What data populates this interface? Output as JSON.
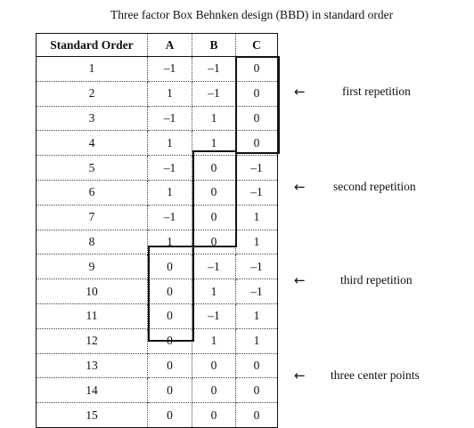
{
  "title": "Three factor Box Behnken design (BBD) in standard order",
  "table": {
    "headers": [
      "Standard Order",
      "A",
      "B",
      "C"
    ],
    "rows": [
      [
        "1",
        "–1",
        "–1",
        "0"
      ],
      [
        "2",
        "1",
        "–1",
        "0"
      ],
      [
        "3",
        "–1",
        "1",
        "0"
      ],
      [
        "4",
        "1",
        "1",
        "0"
      ],
      [
        "5",
        "–1",
        "0",
        "–1"
      ],
      [
        "6",
        "1",
        "0",
        "–1"
      ],
      [
        "7",
        "–1",
        "0",
        "1"
      ],
      [
        "8",
        "1",
        "0",
        "1"
      ],
      [
        "9",
        "0",
        "–1",
        "–1"
      ],
      [
        "10",
        "0",
        "1",
        "–1"
      ],
      [
        "11",
        "0",
        "–1",
        "1"
      ],
      [
        "12",
        "0",
        "1",
        "1"
      ],
      [
        "13",
        "0",
        "0",
        "0"
      ],
      [
        "14",
        "0",
        "0",
        "0"
      ],
      [
        "15",
        "0",
        "0",
        "0"
      ]
    ]
  },
  "annotations": [
    {
      "arrow": "←",
      "label": "first repetition"
    },
    {
      "arrow": "←",
      "label": "second repetition"
    },
    {
      "arrow": "←",
      "label": "third repetition"
    },
    {
      "arrow": "←",
      "label": "three center points"
    }
  ]
}
